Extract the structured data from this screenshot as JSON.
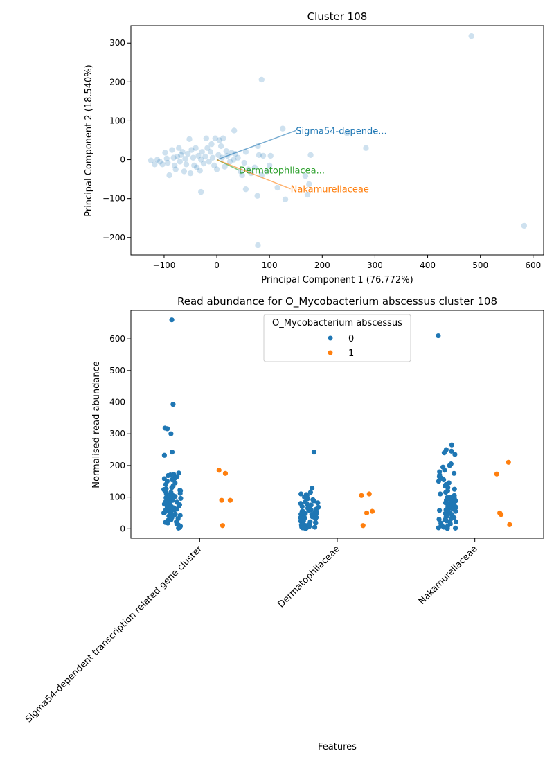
{
  "chart_data": [
    {
      "type": "scatter",
      "title": "Cluster 108",
      "xlabel": "Principal Component 1 (76.772%)",
      "ylabel": "Principal Component 2 (18.540%)",
      "xlim": [
        -163,
        620
      ],
      "ylim": [
        -245,
        345
      ],
      "xticks": [
        -100,
        0,
        100,
        200,
        300,
        400,
        500,
        600
      ],
      "yticks": [
        -200,
        -100,
        0,
        100,
        200,
        300
      ],
      "xtick_labels": [
        "−100",
        "0",
        "100",
        "200",
        "300",
        "400",
        "500",
        "600"
      ],
      "ytick_labels": [
        "−200",
        "−100",
        "0",
        "100",
        "200",
        "300"
      ],
      "grid": false,
      "point_color": "#1f77b4",
      "points": [
        [
          483,
          318
        ],
        [
          583,
          -170
        ],
        [
          85,
          206
        ],
        [
          78,
          -220
        ],
        [
          33,
          75
        ],
        [
          125,
          80
        ],
        [
          247,
          68
        ],
        [
          283,
          30
        ],
        [
          178,
          12
        ],
        [
          168,
          -42
        ],
        [
          175,
          -63
        ],
        [
          172,
          -90
        ],
        [
          130,
          -102
        ],
        [
          115,
          -72
        ],
        [
          77,
          -93
        ],
        [
          55,
          -76
        ],
        [
          -30,
          -83
        ],
        [
          -125,
          -2
        ],
        [
          -118,
          -12
        ],
        [
          -113,
          0
        ],
        [
          -108,
          -5
        ],
        [
          -103,
          -12
        ],
        [
          -98,
          18
        ],
        [
          -95,
          3
        ],
        [
          -93,
          -8
        ],
        [
          -90,
          -40
        ],
        [
          -85,
          25
        ],
        [
          -82,
          5
        ],
        [
          -80,
          -15
        ],
        [
          -78,
          -25
        ],
        [
          -75,
          8
        ],
        [
          -72,
          30
        ],
        [
          -70,
          -5
        ],
        [
          -68,
          12
        ],
        [
          -65,
          20
        ],
        [
          -62,
          -30
        ],
        [
          -60,
          2
        ],
        [
          -58,
          -12
        ],
        [
          -55,
          15
        ],
        [
          -52,
          53
        ],
        [
          -50,
          -35
        ],
        [
          -48,
          25
        ],
        [
          -45,
          5
        ],
        [
          -43,
          -15
        ],
        [
          -40,
          30
        ],
        [
          -38,
          -20
        ],
        [
          -35,
          10
        ],
        [
          -32,
          -28
        ],
        [
          -30,
          0
        ],
        [
          -28,
          20
        ],
        [
          -25,
          -10
        ],
        [
          -22,
          8
        ],
        [
          -20,
          55
        ],
        [
          -18,
          30
        ],
        [
          -15,
          -5
        ],
        [
          -12,
          20
        ],
        [
          -10,
          40
        ],
        [
          -8,
          5
        ],
        [
          -5,
          -15
        ],
        [
          -3,
          55
        ],
        [
          0,
          -25
        ],
        [
          3,
          12
        ],
        [
          5,
          50
        ],
        [
          8,
          35
        ],
        [
          10,
          5
        ],
        [
          12,
          55
        ],
        [
          15,
          -18
        ],
        [
          18,
          22
        ],
        [
          20,
          10
        ],
        [
          25,
          -5
        ],
        [
          28,
          18
        ],
        [
          32,
          0
        ],
        [
          35,
          15
        ],
        [
          40,
          5
        ],
        [
          45,
          -30
        ],
        [
          48,
          -40
        ],
        [
          52,
          -8
        ],
        [
          55,
          20
        ],
        [
          60,
          -25
        ],
        [
          65,
          -35
        ],
        [
          72,
          -20
        ],
        [
          78,
          35
        ],
        [
          80,
          12
        ],
        [
          85,
          -40
        ],
        [
          88,
          10
        ],
        [
          95,
          -30
        ],
        [
          100,
          -15
        ],
        [
          102,
          10
        ]
      ],
      "loadings": [
        {
          "label": "Sigma54-depende...",
          "x": 150,
          "y": 75,
          "color": "#1f77b4"
        },
        {
          "label": "Dermatophilacea...",
          "x": 42,
          "y": -27,
          "color": "#2ca02c"
        },
        {
          "label": "Nakamurellaceae",
          "x": 140,
          "y": -75,
          "color": "#ff7f0e"
        }
      ]
    },
    {
      "type": "scatter",
      "subtype": "strip",
      "title": "Read abundance for O_Mycobacterium abscessus cluster 108",
      "xlabel": "Features",
      "ylabel": "Normalised read abundance",
      "ylim": [
        -30,
        690
      ],
      "yticks": [
        0,
        100,
        200,
        300,
        400,
        500,
        600
      ],
      "categories": [
        "Sigma54-dependent transcription related gene cluster",
        "Dermatophilaceae",
        "Nakamurellaceae"
      ],
      "legend": {
        "title": "O_Mycobacterium abscessus",
        "placement": "top-center"
      },
      "series": [
        {
          "name": "0",
          "color": "#1f77b4",
          "values": [
            [
              660,
              393,
              318,
              316,
              300,
              242,
              232,
              176,
              172,
              170,
              168,
              165,
              160,
              158,
              155,
              150,
              145,
              140,
              135,
              130,
              126,
              124,
              122,
              120,
              118,
              115,
              112,
              110,
              108,
              105,
              102,
              100,
              98,
              96,
              94,
              92,
              90,
              88,
              86,
              84,
              82,
              80,
              78,
              76,
              74,
              72,
              70,
              68,
              66,
              64,
              62,
              60,
              58,
              56,
              54,
              52,
              50,
              48,
              46,
              44,
              42,
              40,
              38,
              36,
              34,
              32,
              30,
              28,
              26,
              24,
              22,
              20,
              18,
              15,
              12,
              8,
              4,
              2
            ],
            [
              242,
              128,
              115,
              110,
              108,
              105,
              100,
              95,
              92,
              88,
              85,
              82,
              80,
              78,
              75,
              72,
              70,
              68,
              65,
              62,
              60,
              58,
              55,
              52,
              50,
              48,
              46,
              44,
              42,
              40,
              38,
              36,
              34,
              32,
              30,
              28,
              26,
              24,
              22,
              20,
              18,
              16,
              14,
              12,
              10,
              8,
              6,
              4,
              2,
              1,
              5,
              15,
              25,
              35,
              45,
              55,
              65,
              3,
              7,
              11
            ],
            [
              610,
              265,
              250,
              245,
              240,
              235,
              205,
              200,
              195,
              185,
              180,
              175,
              170,
              165,
              160,
              155,
              150,
              145,
              140,
              135,
              130,
              125,
              120,
              115,
              110,
              105,
              100,
              98,
              95,
              92,
              90,
              88,
              85,
              82,
              80,
              78,
              75,
              72,
              70,
              68,
              65,
              62,
              60,
              58,
              55,
              52,
              50,
              48,
              45,
              42,
              40,
              38,
              35,
              32,
              30,
              28,
              25,
              22,
              20,
              18,
              15,
              12,
              10,
              8,
              5,
              3,
              2,
              1
            ]
          ]
        },
        {
          "name": "1",
          "color": "#ff7f0e",
          "values": [
            [
              185,
              175,
              90,
              90,
              10
            ],
            [
              110,
              105,
              55,
              50,
              10
            ],
            [
              210,
              173,
              50,
              45,
              13
            ]
          ]
        }
      ]
    }
  ]
}
